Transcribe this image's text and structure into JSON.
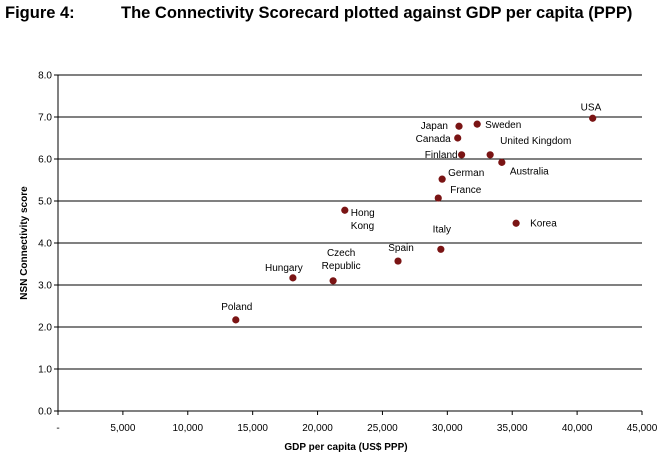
{
  "figure": {
    "number_label": "Figure 4:",
    "title": "The Connectivity Scorecard plotted against GDP per capita (PPP)"
  },
  "colors": {
    "point": "#7a1414",
    "grid": "#000000"
  },
  "chart_data": {
    "type": "scatter",
    "xlabel": "GDP per capita (US$ PPP)",
    "ylabel": "NSN Connectivity score",
    "xlim": [
      0,
      45000
    ],
    "ylim": [
      0,
      8
    ],
    "x_ticks": [
      0,
      5000,
      10000,
      15000,
      20000,
      25000,
      30000,
      35000,
      40000,
      45000
    ],
    "x_tick_labels": [
      "-",
      "5,000",
      "10,000",
      "15,000",
      "20,000",
      "25,000",
      "30,000",
      "35,000",
      "40,000",
      "45,000"
    ],
    "y_ticks": [
      0,
      1,
      2,
      3,
      4,
      5,
      6,
      7,
      8
    ],
    "y_tick_labels": [
      "0.0",
      "1.0",
      "2.0",
      "3.0",
      "4.0",
      "5.0",
      "6.0",
      "7.0",
      "8.0"
    ],
    "grid": "horizontal",
    "points": [
      {
        "label": "USA",
        "x": 41200,
        "y": 6.97
      },
      {
        "label": "Sweden",
        "x": 32300,
        "y": 6.83
      },
      {
        "label": "Japan",
        "x": 30900,
        "y": 6.78
      },
      {
        "label": "Canada",
        "x": 30800,
        "y": 6.5
      },
      {
        "label": "Finland",
        "x": 31100,
        "y": 6.1
      },
      {
        "label": "United Kingdom",
        "x": 33300,
        "y": 6.1
      },
      {
        "label": "Australia",
        "x": 34200,
        "y": 5.92
      },
      {
        "label": "German",
        "x": 29600,
        "y": 5.52
      },
      {
        "label": "France",
        "x": 29300,
        "y": 5.07
      },
      {
        "label": "Hong Kong",
        "x": 22100,
        "y": 4.78
      },
      {
        "label": "Korea",
        "x": 35300,
        "y": 4.47
      },
      {
        "label": "Italy",
        "x": 29500,
        "y": 3.85
      },
      {
        "label": "Spain",
        "x": 26200,
        "y": 3.57
      },
      {
        "label": "Hungary",
        "x": 18100,
        "y": 3.17
      },
      {
        "label": "Czech Republic",
        "x": 21200,
        "y": 3.1
      },
      {
        "label": "Poland",
        "x": 13700,
        "y": 2.17
      }
    ]
  }
}
